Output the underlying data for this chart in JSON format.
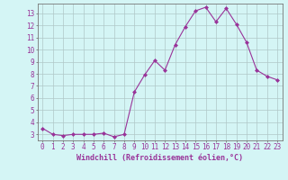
{
  "x": [
    0,
    1,
    2,
    3,
    4,
    5,
    6,
    7,
    8,
    9,
    10,
    11,
    12,
    13,
    14,
    15,
    16,
    17,
    18,
    19,
    20,
    21,
    22,
    23
  ],
  "y": [
    3.5,
    3.0,
    2.9,
    3.0,
    3.0,
    3.0,
    3.1,
    2.8,
    3.0,
    6.5,
    7.9,
    9.1,
    8.3,
    10.4,
    11.9,
    13.2,
    13.5,
    12.3,
    13.4,
    12.1,
    10.6,
    8.3,
    7.8,
    7.5
  ],
  "line_color": "#993399",
  "marker": "D",
  "marker_size": 2.0,
  "background_color": "#d4f5f5",
  "grid_color": "#b0c8c8",
  "xlabel": "Windchill (Refroidissement éolien,°C)",
  "xlabel_fontsize": 6.0,
  "tick_fontsize": 5.5,
  "ylim": [
    2.5,
    13.8
  ],
  "xlim": [
    -0.5,
    23.5
  ],
  "yticks": [
    3,
    4,
    5,
    6,
    7,
    8,
    9,
    10,
    11,
    12,
    13
  ],
  "xticks": [
    0,
    1,
    2,
    3,
    4,
    5,
    6,
    7,
    8,
    9,
    10,
    11,
    12,
    13,
    14,
    15,
    16,
    17,
    18,
    19,
    20,
    21,
    22,
    23
  ]
}
